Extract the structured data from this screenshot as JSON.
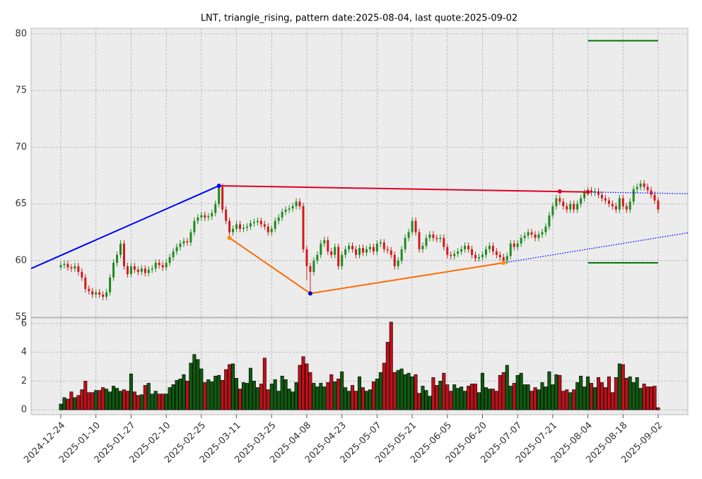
{
  "chart_data": {
    "type": "candlestick",
    "title": "LNT, triangle_rising, pattern date:2025-08-04, last quote:2025-09-02",
    "categories": [
      "2024-12-24",
      null,
      null,
      null,
      null,
      null,
      null,
      null,
      null,
      null,
      "2025-01-10",
      null,
      null,
      null,
      null,
      null,
      null,
      null,
      null,
      null,
      "2025-01-27",
      null,
      null,
      null,
      null,
      null,
      null,
      null,
      null,
      null,
      "2025-02-10",
      null,
      null,
      null,
      null,
      null,
      null,
      null,
      null,
      null,
      "2025-02-25",
      null,
      null,
      null,
      null,
      null,
      null,
      null,
      null,
      null,
      "2025-03-11",
      null,
      null,
      null,
      null,
      null,
      null,
      null,
      null,
      null,
      "2025-03-25",
      null,
      null,
      null,
      null,
      null,
      null,
      null,
      null,
      null,
      "2025-04-08",
      null,
      null,
      null,
      null,
      null,
      null,
      null,
      null,
      null,
      "2025-04-23",
      null,
      null,
      null,
      null,
      null,
      null,
      null,
      null,
      null,
      "2025-05-07",
      null,
      null,
      null,
      null,
      null,
      null,
      null,
      null,
      null,
      "2025-05-21",
      null,
      null,
      null,
      null,
      null,
      null,
      null,
      null,
      null,
      "2025-06-05",
      null,
      null,
      null,
      null,
      null,
      null,
      null,
      null,
      null,
      "2025-06-20",
      null,
      null,
      null,
      null,
      null,
      null,
      null,
      null,
      null,
      "2025-07-07",
      null,
      null,
      null,
      null,
      null,
      null,
      null,
      null,
      null,
      "2025-07-21",
      null,
      null,
      null,
      null,
      null,
      null,
      null,
      null,
      null,
      "2025-08-04",
      null,
      null,
      null,
      null,
      null,
      null,
      null,
      null,
      null,
      "2025-08-18",
      null,
      null,
      null,
      null,
      null,
      null,
      null,
      null,
      null,
      "2025-09-02"
    ],
    "open": [
      59.4,
      59.6,
      59.7,
      59.4,
      59.3,
      59.5,
      59.0,
      58.5,
      57.5,
      57.3,
      57.0,
      57.2,
      57.0,
      56.8,
      57.2,
      58.5,
      59.8,
      60.5,
      61.5,
      59.5,
      58.8,
      59.5,
      59.2,
      59.0,
      59.3,
      58.9,
      59.2,
      59.3,
      59.8,
      59.6,
      59.4,
      59.8,
      60.3,
      60.8,
      61.2,
      61.5,
      61.7,
      61.6,
      62.5,
      63.5,
      63.8,
      64.0,
      63.8,
      63.9,
      64.2,
      65.0,
      66.5,
      64.5,
      63.5,
      62.5,
      62.8,
      63.2,
      62.8,
      62.9,
      63.0,
      63.3,
      63.4,
      63.5,
      63.2,
      63.0,
      62.5,
      62.8,
      63.5,
      63.8,
      64.3,
      64.5,
      64.6,
      64.8,
      65.2,
      64.8,
      61.0,
      59.5,
      59.0,
      60.0,
      60.5,
      61.5,
      61.8,
      60.8,
      60.5,
      61.2,
      59.5,
      60.5,
      61.0,
      61.3,
      61.0,
      60.5,
      61.1,
      60.7,
      61.0,
      61.2,
      60.8,
      61.5,
      61.6,
      61.0,
      60.9,
      60.5,
      59.5,
      60.0,
      61.0,
      62.0,
      62.5,
      63.5,
      62.5,
      61.0,
      61.3,
      62.0,
      62.3,
      62.0,
      61.9,
      62.0,
      61.2,
      60.5,
      60.4,
      60.6,
      60.8,
      61.0,
      61.3,
      61.0,
      60.5,
      60.2,
      60.3,
      60.5,
      61.0,
      61.3,
      60.8,
      60.5,
      60.3,
      60.0,
      60.4,
      61.5,
      61.2,
      61.5,
      62.0,
      62.2,
      62.5,
      62.3,
      62.0,
      62.3,
      62.5,
      63.0,
      64.0,
      64.8,
      65.5,
      65.2,
      64.8,
      64.5,
      65.0,
      64.5,
      65.0,
      65.5,
      66.0,
      66.2,
      66.0,
      66.1,
      65.8,
      65.5,
      65.3,
      65.0,
      64.8,
      64.5,
      65.5,
      64.8,
      64.5,
      65.2,
      66.3,
      66.5,
      66.8,
      66.5,
      66.2,
      65.8,
      65.3
    ],
    "high": [
      59.9,
      60.0,
      60.0,
      59.7,
      59.8,
      59.8,
      59.3,
      58.8,
      57.8,
      57.6,
      57.5,
      57.5,
      57.3,
      57.5,
      58.8,
      60.1,
      60.8,
      61.8,
      61.8,
      59.8,
      59.8,
      59.8,
      59.5,
      59.6,
      59.6,
      59.5,
      59.6,
      60.1,
      60.1,
      59.9,
      60.1,
      60.6,
      61.1,
      61.5,
      61.8,
      62.0,
      62.0,
      62.8,
      63.8,
      64.1,
      64.3,
      64.3,
      64.2,
      64.5,
      65.3,
      66.8,
      66.8,
      64.8,
      63.8,
      63.1,
      63.5,
      63.5,
      63.2,
      63.3,
      63.6,
      63.7,
      63.8,
      63.8,
      63.5,
      63.3,
      63.1,
      63.8,
      64.1,
      64.6,
      64.8,
      64.9,
      65.1,
      65.5,
      65.5,
      65.1,
      61.3,
      59.8,
      60.3,
      60.8,
      61.8,
      62.1,
      62.1,
      61.1,
      61.5,
      61.5,
      60.8,
      61.3,
      61.6,
      61.6,
      61.3,
      61.4,
      61.4,
      61.3,
      61.5,
      61.5,
      61.8,
      61.9,
      61.9,
      61.3,
      61.2,
      60.8,
      60.3,
      61.3,
      62.3,
      62.8,
      63.8,
      63.8,
      62.8,
      61.6,
      62.3,
      62.6,
      62.6,
      62.3,
      62.3,
      62.3,
      61.5,
      60.8,
      60.9,
      61.1,
      61.3,
      61.6,
      61.6,
      61.3,
      60.8,
      60.6,
      60.8,
      61.3,
      61.6,
      61.6,
      61.1,
      60.8,
      60.6,
      60.7,
      61.8,
      61.8,
      61.8,
      62.3,
      62.5,
      62.8,
      62.8,
      62.6,
      62.6,
      62.8,
      63.3,
      64.3,
      65.1,
      65.8,
      65.8,
      65.5,
      65.1,
      65.3,
      65.3,
      65.3,
      65.8,
      66.3,
      66.5,
      66.5,
      66.4,
      66.4,
      66.1,
      65.8,
      65.6,
      65.3,
      65.1,
      65.8,
      65.8,
      65.1,
      65.5,
      66.6,
      66.8,
      67.1,
      67.1,
      66.8,
      66.5,
      66.1,
      65.6
    ],
    "low": [
      59.1,
      59.3,
      59.1,
      59.0,
      59.0,
      58.7,
      58.2,
      57.2,
      57.0,
      56.7,
      56.7,
      56.7,
      56.5,
      56.5,
      56.9,
      58.2,
      59.5,
      60.2,
      59.2,
      58.5,
      58.5,
      58.9,
      58.7,
      58.7,
      58.6,
      58.6,
      58.9,
      59.0,
      59.3,
      59.1,
      59.1,
      59.5,
      60.0,
      60.5,
      60.9,
      61.2,
      61.3,
      61.3,
      62.2,
      63.2,
      63.5,
      63.5,
      63.5,
      63.6,
      63.9,
      64.7,
      64.2,
      63.2,
      62.2,
      62.2,
      62.5,
      62.5,
      62.5,
      62.6,
      62.7,
      63.0,
      63.1,
      62.9,
      62.7,
      62.2,
      62.2,
      62.5,
      63.2,
      63.5,
      64.0,
      64.2,
      64.3,
      64.5,
      64.5,
      60.7,
      58.3,
      57.1,
      58.7,
      59.7,
      60.2,
      61.2,
      60.5,
      60.2,
      60.2,
      59.2,
      59.2,
      60.2,
      60.7,
      60.7,
      60.2,
      60.2,
      60.4,
      60.4,
      60.7,
      60.5,
      60.5,
      61.2,
      60.7,
      60.6,
      60.2,
      59.2,
      59.2,
      59.7,
      60.7,
      61.7,
      62.2,
      62.2,
      60.7,
      60.7,
      61.0,
      61.7,
      61.7,
      61.6,
      61.6,
      60.9,
      60.2,
      60.1,
      60.1,
      60.3,
      60.5,
      60.7,
      60.7,
      60.2,
      59.9,
      59.9,
      60.0,
      60.2,
      60.7,
      60.5,
      60.2,
      60.0,
      59.7,
      59.7,
      60.1,
      60.9,
      60.9,
      61.2,
      61.7,
      61.9,
      62.0,
      61.7,
      61.7,
      62.0,
      62.2,
      62.7,
      63.7,
      64.5,
      64.9,
      64.5,
      64.2,
      64.2,
      64.2,
      64.2,
      64.7,
      65.2,
      65.7,
      65.7,
      65.7,
      65.5,
      65.2,
      65.0,
      64.7,
      64.5,
      64.2,
      64.2,
      64.5,
      64.2,
      64.2,
      64.9,
      66.0,
      66.2,
      66.2,
      65.9,
      65.5,
      65.0,
      64.2
    ],
    "close": [
      59.6,
      59.7,
      59.4,
      59.3,
      59.5,
      59.0,
      58.5,
      57.5,
      57.3,
      57.0,
      57.2,
      57.0,
      56.8,
      57.2,
      58.5,
      59.8,
      60.5,
      61.5,
      59.5,
      58.8,
      59.5,
      59.2,
      59.0,
      59.3,
      58.9,
      59.2,
      59.3,
      59.8,
      59.6,
      59.4,
      59.8,
      60.3,
      60.8,
      61.2,
      61.5,
      61.7,
      61.6,
      62.5,
      63.5,
      63.8,
      64.0,
      63.8,
      63.9,
      64.2,
      65.0,
      66.5,
      64.5,
      63.5,
      62.5,
      62.8,
      63.2,
      62.8,
      62.9,
      63.0,
      63.3,
      63.4,
      63.5,
      63.2,
      63.0,
      62.5,
      62.8,
      63.5,
      63.8,
      64.3,
      64.5,
      64.6,
      64.8,
      65.2,
      64.8,
      61.0,
      59.5,
      59.0,
      60.0,
      60.5,
      61.5,
      61.8,
      60.8,
      60.5,
      61.2,
      59.5,
      60.5,
      61.0,
      61.3,
      61.0,
      60.5,
      61.1,
      60.7,
      61.0,
      61.2,
      60.8,
      61.5,
      61.6,
      61.0,
      60.9,
      60.5,
      59.5,
      60.0,
      61.0,
      62.0,
      62.5,
      63.5,
      62.5,
      61.0,
      61.3,
      62.0,
      62.3,
      62.0,
      61.9,
      62.0,
      61.2,
      60.5,
      60.4,
      60.6,
      60.8,
      61.0,
      61.3,
      61.0,
      60.5,
      60.2,
      60.3,
      60.5,
      61.0,
      61.3,
      60.8,
      60.5,
      60.3,
      60.0,
      60.4,
      61.5,
      61.2,
      61.5,
      62.0,
      62.2,
      62.5,
      62.3,
      62.0,
      62.3,
      62.5,
      63.0,
      64.0,
      64.8,
      65.5,
      65.2,
      64.8,
      64.5,
      65.0,
      64.5,
      65.0,
      65.5,
      66.0,
      66.2,
      66.0,
      66.1,
      65.8,
      65.5,
      65.3,
      65.0,
      64.8,
      64.5,
      65.5,
      64.8,
      64.5,
      65.2,
      66.3,
      66.5,
      66.8,
      66.5,
      66.2,
      65.8,
      65.3,
      64.5
    ],
    "volume": [
      0.4,
      0.85,
      0.75,
      1.25,
      0.85,
      1.0,
      1.4,
      2.0,
      1.2,
      1.2,
      1.35,
      1.35,
      1.55,
      1.45,
      1.25,
      1.65,
      1.5,
      1.3,
      1.4,
      1.3,
      2.5,
      1.25,
      1.0,
      1.05,
      1.7,
      1.85,
      1.1,
      1.3,
      1.1,
      1.1,
      1.1,
      1.55,
      1.75,
      2.05,
      2.15,
      2.45,
      2.0,
      3.25,
      3.85,
      3.5,
      2.85,
      1.9,
      2.1,
      1.95,
      2.35,
      2.4,
      2.05,
      2.8,
      3.15,
      3.2,
      2.2,
      1.45,
      1.9,
      1.85,
      2.9,
      2.0,
      1.55,
      1.8,
      3.6,
      1.4,
      1.8,
      2.1,
      1.3,
      2.35,
      2.1,
      1.45,
      1.25,
      1.9,
      3.1,
      3.7,
      3.2,
      2.6,
      1.85,
      1.6,
      1.85,
      1.6,
      1.9,
      2.45,
      1.95,
      2.15,
      2.65,
      1.55,
      1.3,
      1.7,
      1.3,
      2.3,
      1.55,
      1.3,
      1.4,
      1.95,
      2.15,
      2.6,
      3.25,
      4.7,
      6.1,
      2.6,
      2.75,
      2.85,
      2.45,
      2.55,
      2.3,
      2.45,
      1.15,
      1.65,
      1.35,
      0.95,
      2.25,
      1.7,
      2.0,
      2.55,
      1.75,
      1.3,
      1.75,
      1.5,
      1.6,
      1.3,
      1.65,
      1.8,
      1.8,
      1.2,
      2.55,
      1.55,
      1.45,
      1.45,
      1.3,
      2.4,
      2.6,
      3.1,
      1.65,
      1.85,
      2.4,
      2.55,
      1.75,
      1.75,
      1.3,
      1.55,
      1.4,
      1.9,
      1.6,
      2.65,
      1.75,
      2.45,
      2.4,
      1.3,
      1.4,
      1.2,
      1.4,
      1.9,
      2.35,
      1.6,
      2.3,
      1.85,
      1.55,
      2.25,
      1.9,
      1.55,
      2.3,
      1.2,
      2.25,
      3.2,
      3.15,
      2.2,
      2.3,
      1.9,
      2.25,
      1.5,
      1.8,
      1.6,
      1.6,
      1.65,
      0.15
    ],
    "up_color": "#1f8a1f",
    "down_color": "#d11a1a",
    "volume_up_color": "#0f5a0f",
    "volume_down_color": "#c0101a",
    "ylim": [
      55,
      80.5
    ],
    "yticks": [
      55,
      60,
      65,
      70,
      75,
      80
    ],
    "volume_ylim": [
      -0.34,
      6.39
    ],
    "volume_yticks": [
      0,
      2,
      4,
      6
    ],
    "grid": true,
    "pattern_lines": [
      {
        "color": "#0000ff",
        "style": "solid",
        "points": [
          {
            "x": -8.45,
            "y": 59.3
          },
          {
            "x": 45,
            "y": 66.6
          }
        ]
      },
      {
        "color": "#dd0022",
        "style": "solid",
        "points": [
          {
            "x": 45,
            "y": 66.6
          },
          {
            "x": 150,
            "y": 66.05
          }
        ]
      },
      {
        "color": "#ff6a00",
        "style": "solid",
        "points": [
          {
            "x": 48,
            "y": 62.0
          },
          {
            "x": 71,
            "y": 57.1
          },
          {
            "x": 126,
            "y": 59.8
          }
        ]
      },
      {
        "color": "#0000ff",
        "style": "dotted",
        "points": [
          {
            "x": 126,
            "y": 59.8
          },
          {
            "x": 178.5,
            "y": 62.45
          }
        ]
      },
      {
        "color": "#0000ff",
        "style": "dotted",
        "points": [
          {
            "x": 150,
            "y": 66.05
          },
          {
            "x": 178.5,
            "y": 65.9
          }
        ]
      },
      {
        "color": "#007700",
        "style": "solid",
        "points": [
          {
            "x": 150,
            "y": 79.4
          },
          {
            "x": 170,
            "y": 79.4
          }
        ]
      },
      {
        "color": "#007700",
        "style": "solid",
        "points": [
          {
            "x": 150,
            "y": 59.8
          },
          {
            "x": 170,
            "y": 59.8
          }
        ]
      }
    ],
    "markers": [
      {
        "x": 45,
        "y": 66.6,
        "color": "#0000ff"
      },
      {
        "x": 48,
        "y": 62.0,
        "color": "#ff8c00"
      },
      {
        "x": 71,
        "y": 57.1,
        "color": "#0000cc"
      },
      {
        "x": 126,
        "y": 59.8,
        "color": "#ff8c00"
      },
      {
        "x": 142,
        "y": 66.1,
        "color": "#dd0022"
      },
      {
        "x": 150,
        "y": 66.05,
        "color": "#dd0022"
      }
    ]
  }
}
